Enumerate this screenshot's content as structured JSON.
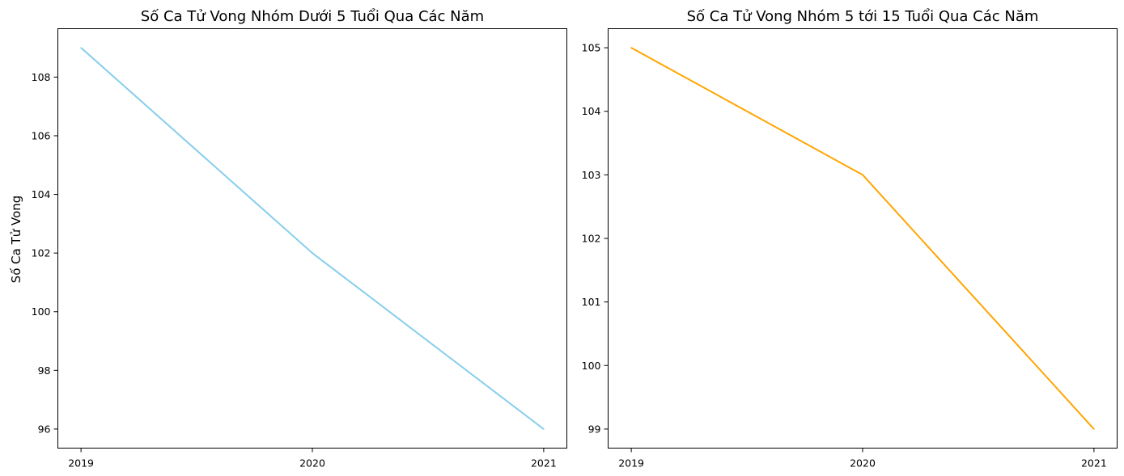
{
  "chart_data": [
    {
      "type": "line",
      "title": "Số Ca Tử Vong Nhóm Dưới 5 Tuổi Qua Các Năm",
      "xlabel": "",
      "ylabel": "Số Ca Tử Vong",
      "x": [
        "2019",
        "2020",
        "2021"
      ],
      "series": [
        {
          "values": [
            109,
            102,
            96
          ],
          "color": "#87CEEB"
        }
      ],
      "ylim": [
        95.35,
        109.65
      ],
      "yticks": [
        96,
        98,
        100,
        102,
        104,
        106,
        108
      ],
      "grid": false,
      "legend": "none"
    },
    {
      "type": "line",
      "title": "Số Ca Tử Vong Nhóm 5 tới 15 Tuổi Qua Các Năm",
      "xlabel": "",
      "ylabel": "",
      "x": [
        "2019",
        "2020",
        "2021"
      ],
      "series": [
        {
          "values": [
            105,
            103,
            99
          ],
          "color": "#FFA500"
        }
      ],
      "ylim": [
        98.7,
        105.3
      ],
      "yticks": [
        99,
        100,
        101,
        102,
        103,
        104,
        105
      ],
      "grid": false,
      "legend": "none"
    }
  ]
}
